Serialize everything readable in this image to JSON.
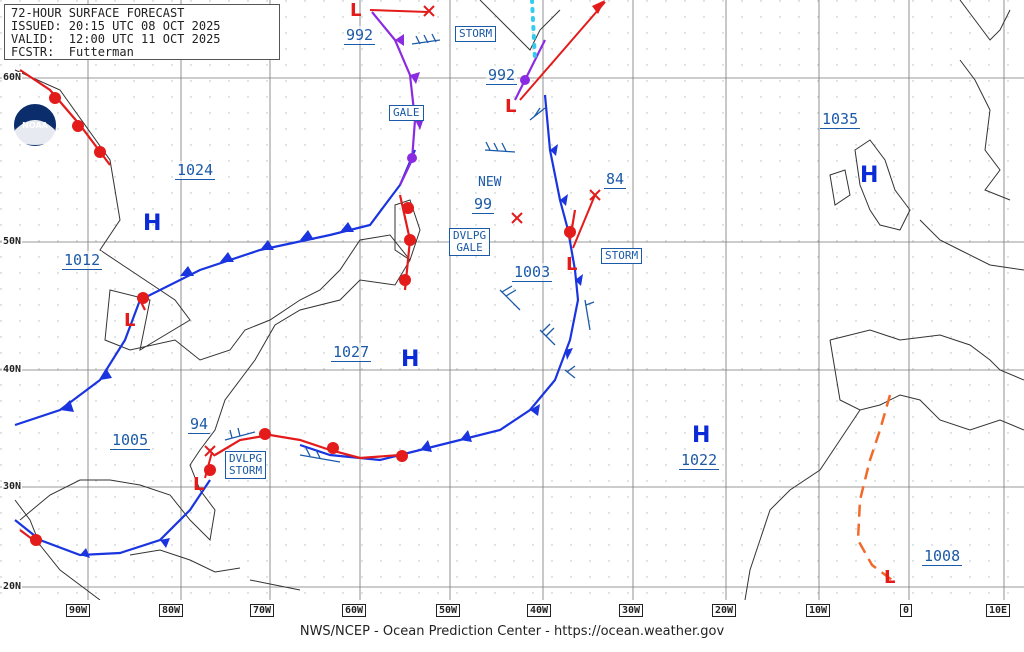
{
  "header": {
    "title": "72-HOUR SURFACE FORECAST",
    "issued": "ISSUED: 20:15 UTC 08 OCT 2025",
    "valid": "VALID:  12:00 UTC 11 OCT 2025",
    "forecaster": "FCSTR:  Futterman"
  },
  "footer": "NWS/NCEP - Ocean Prediction Center - https://ocean.weather.gov",
  "logo": "noaa-logo",
  "latitude_labels": [
    "60N",
    "50N",
    "40N",
    "30N",
    "20N"
  ],
  "longitude_labels": [
    "90W",
    "80W",
    "70W",
    "60W",
    "50W",
    "40W",
    "30W",
    "20W",
    "10W",
    "0",
    "10E"
  ],
  "pressure_labels": {
    "p992_nw": "992",
    "p992_n": "992",
    "p1024": "1024",
    "p1012": "1012",
    "p1027": "1027",
    "p1005": "1005",
    "p94": "94",
    "p99": "99",
    "p1003": "1003",
    "p84": "84",
    "p1035": "1035",
    "p1022": "1022",
    "p1008": "1008"
  },
  "centers": {
    "h1": "H",
    "h2": "H",
    "h3": "H",
    "h4": "H"
  },
  "tags": {
    "storm_n": "STORM",
    "gale": "GALE",
    "new": "NEW",
    "dvlpg_gale": "DVLPG\nGALE",
    "storm_e": "STORM",
    "dvlpg_storm": "DVLPG\nSTORM"
  },
  "colors": {
    "cold_front": "#1a35e0",
    "warm_front": "#e31b1b",
    "occluded_front": "#8a2be2",
    "trough": "#f26a2a",
    "text": "#1b5aa8",
    "coast": "#333333"
  }
}
